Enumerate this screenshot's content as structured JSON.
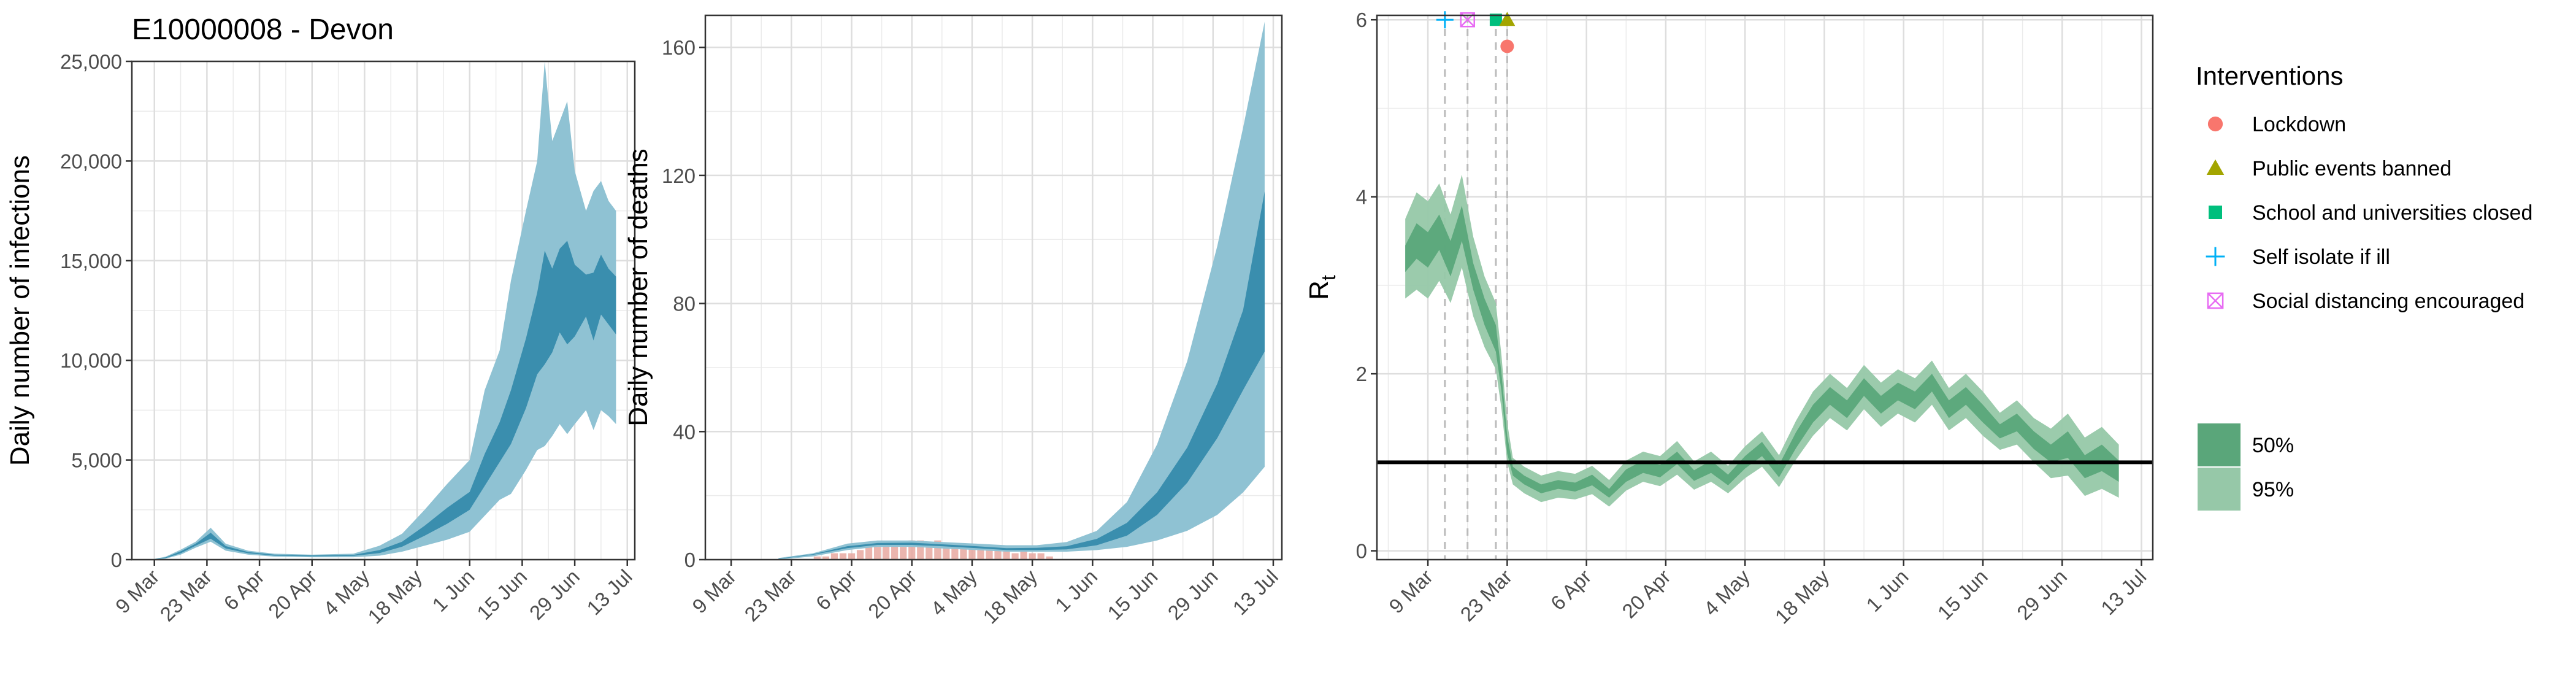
{
  "title": "E10000008 - Devon",
  "colors": {
    "band_light": "#8fc2d3",
    "band_dark": "#3a8eae",
    "rt_light": "#96c8a8",
    "rt_dark": "#5aa67a",
    "bars": "#e8a8a0",
    "threshold": "#000000",
    "vline": "#bbbbbb",
    "panel_border": "#333333",
    "grid": "#ebebeb",
    "lockdown": "#f8766d",
    "events_banned": "#a3a500",
    "schools_closed": "#00bf7d",
    "self_isolate": "#00b0f6",
    "social_distancing": "#e76bf3"
  },
  "interventions_legend": {
    "title": "Interventions",
    "items": [
      {
        "label": "Lockdown",
        "shape": "circle",
        "color_key": "lockdown",
        "date": "2020-03-23"
      },
      {
        "label": "Public events banned",
        "shape": "triangle",
        "color_key": "events_banned",
        "date": "2020-03-23"
      },
      {
        "label": "School and universities closed",
        "shape": "square",
        "color_key": "schools_closed",
        "date": "2020-03-21"
      },
      {
        "label": "Self isolate if ill",
        "shape": "plus",
        "color_key": "self_isolate",
        "date": "2020-03-12"
      },
      {
        "label": "Social distancing encouraged",
        "shape": "boxx",
        "color_key": "social_distancing",
        "date": "2020-03-16"
      }
    ]
  },
  "ci_legend": {
    "items": [
      {
        "label": "50%",
        "color_key": "rt_dark"
      },
      {
        "label": "95%",
        "color_key": "rt_light"
      }
    ]
  },
  "chart_data": [
    {
      "type": "area",
      "title": "E10000008 - Devon",
      "ylabel": "Daily number of infections",
      "ylim": [
        0,
        25000
      ],
      "yticks": [
        0,
        5000,
        10000,
        15000,
        20000,
        25000
      ],
      "ytick_labels": [
        "0",
        "5,000",
        "10,000",
        "15,000",
        "20,000",
        "25,000"
      ],
      "x_range": [
        "2020-03-03",
        "2020-07-15"
      ],
      "xticks": [
        "2020-03-09",
        "2020-03-23",
        "2020-04-06",
        "2020-04-20",
        "2020-05-04",
        "2020-05-18",
        "2020-06-01",
        "2020-06-15",
        "2020-06-29",
        "2020-07-13"
      ],
      "xtick_labels": [
        "9 Mar",
        "23 Mar",
        "6 Apr",
        "20 Apr",
        "4 May",
        "18 May",
        "1 Jun",
        "15 Jun",
        "29 Jun",
        "13 Jul"
      ],
      "grid": true,
      "x": [
        "2020-03-08",
        "2020-03-12",
        "2020-03-16",
        "2020-03-20",
        "2020-03-24",
        "2020-03-28",
        "2020-04-03",
        "2020-04-10",
        "2020-04-20",
        "2020-05-01",
        "2020-05-08",
        "2020-05-14",
        "2020-05-20",
        "2020-05-26",
        "2020-06-01",
        "2020-06-05",
        "2020-06-09",
        "2020-06-12",
        "2020-06-16",
        "2020-06-19",
        "2020-06-21",
        "2020-06-23",
        "2020-06-25",
        "2020-06-27",
        "2020-06-29",
        "2020-07-02",
        "2020-07-04",
        "2020-07-06",
        "2020-07-08",
        "2020-07-10"
      ],
      "series": [
        {
          "name": "95%",
          "lower": [
            0,
            50,
            250,
            600,
            900,
            450,
            250,
            150,
            120,
            120,
            200,
            400,
            700,
            1000,
            1400,
            2200,
            3000,
            3300,
            4500,
            5500,
            5700,
            6200,
            6800,
            6300,
            6800,
            7500,
            6500,
            7500,
            7200,
            6800
          ],
          "upper": [
            0,
            150,
            500,
            900,
            1600,
            800,
            450,
            300,
            250,
            300,
            700,
            1300,
            2500,
            3800,
            5000,
            8500,
            10500,
            14000,
            17500,
            20000,
            25000,
            21000,
            22000,
            23000,
            19500,
            17500,
            18500,
            19000,
            18000,
            17500
          ]
        },
        {
          "name": "50%",
          "lower": [
            0,
            80,
            320,
            700,
            1050,
            560,
            320,
            200,
            170,
            190,
            330,
            650,
            1200,
            1800,
            2500,
            3700,
            4900,
            5800,
            7600,
            9300,
            9800,
            10400,
            11400,
            10800,
            11200,
            12200,
            11000,
            12300,
            11800,
            11300
          ],
          "upper": [
            0,
            110,
            420,
            800,
            1350,
            680,
            380,
            250,
            210,
            240,
            480,
            900,
            1700,
            2600,
            3400,
            5300,
            6900,
            8500,
            11100,
            13400,
            15500,
            14600,
            15600,
            16000,
            14800,
            14300,
            14400,
            15300,
            14600,
            14200
          ]
        }
      ]
    },
    {
      "type": "area",
      "ylabel": "Daily number of deaths",
      "ylim": [
        0,
        170
      ],
      "yticks": [
        0,
        40,
        80,
        120,
        160
      ],
      "ytick_labels": [
        "0",
        "40",
        "80",
        "120",
        "160"
      ],
      "x_range": [
        "2020-03-03",
        "2020-07-15"
      ],
      "xticks": [
        "2020-03-09",
        "2020-03-23",
        "2020-04-06",
        "2020-04-20",
        "2020-05-04",
        "2020-05-18",
        "2020-06-01",
        "2020-06-15",
        "2020-06-29",
        "2020-07-13"
      ],
      "xtick_labels": [
        "9 Mar",
        "23 Mar",
        "6 Apr",
        "20 Apr",
        "4 May",
        "18 May",
        "1 Jun",
        "15 Jun",
        "29 Jun",
        "13 Jul"
      ],
      "grid": true,
      "x": [
        "2020-03-20",
        "2020-03-28",
        "2020-04-05",
        "2020-04-12",
        "2020-04-20",
        "2020-04-27",
        "2020-05-05",
        "2020-05-12",
        "2020-05-19",
        "2020-05-26",
        "2020-06-02",
        "2020-06-09",
        "2020-06-16",
        "2020-06-23",
        "2020-06-30",
        "2020-07-06",
        "2020-07-11"
      ],
      "series": [
        {
          "name": "95%",
          "lower": [
            0,
            1,
            3,
            4,
            4,
            3.5,
            3,
            2.5,
            2.5,
            2.5,
            3,
            4,
            6,
            9,
            14,
            21,
            29
          ],
          "upper": [
            0.5,
            2,
            5,
            6,
            6,
            5.5,
            5,
            4.5,
            4.5,
            5.5,
            9,
            18,
            36,
            62,
            98,
            135,
            168
          ]
        },
        {
          "name": "50%",
          "lower": [
            0.2,
            1.5,
            3.6,
            4.6,
            4.6,
            4.2,
            3.6,
            3,
            3,
            3.2,
            4.5,
            7.5,
            14,
            24,
            38,
            53,
            65
          ],
          "upper": [
            0.3,
            1.7,
            4.2,
            5.2,
            5.3,
            4.8,
            4.2,
            3.6,
            3.7,
            4.2,
            6.5,
            11.5,
            21,
            35,
            55,
            78,
            115
          ]
        }
      ],
      "bars": {
        "x": [
          "2020-03-29",
          "2020-03-31",
          "2020-04-02",
          "2020-04-04",
          "2020-04-06",
          "2020-04-08",
          "2020-04-10",
          "2020-04-12",
          "2020-04-14",
          "2020-04-16",
          "2020-04-18",
          "2020-04-20",
          "2020-04-22",
          "2020-04-24",
          "2020-04-26",
          "2020-04-28",
          "2020-04-30",
          "2020-05-02",
          "2020-05-04",
          "2020-05-06",
          "2020-05-08",
          "2020-05-10",
          "2020-05-12",
          "2020-05-14",
          "2020-05-16",
          "2020-05-18",
          "2020-05-20",
          "2020-05-22"
        ],
        "values": [
          1,
          1,
          2,
          2,
          2,
          3,
          4,
          4,
          5,
          5,
          4,
          6,
          6,
          5,
          6,
          4,
          5,
          5,
          4,
          3,
          4,
          3,
          3,
          2,
          3,
          2,
          2,
          1
        ]
      }
    },
    {
      "type": "line",
      "ylabel": "R",
      "ylabel_sub": "t",
      "ylim": [
        -0.1,
        6.05
      ],
      "yticks": [
        0,
        2,
        4,
        6
      ],
      "ytick_labels": [
        "0",
        "2",
        "4",
        "6"
      ],
      "x_range": [
        "2020-02-29",
        "2020-07-15"
      ],
      "xticks": [
        "2020-03-09",
        "2020-03-23",
        "2020-04-06",
        "2020-04-20",
        "2020-05-04",
        "2020-05-18",
        "2020-06-01",
        "2020-06-15",
        "2020-06-29",
        "2020-07-13"
      ],
      "xtick_labels": [
        "9 Mar",
        "23 Mar",
        "6 Apr",
        "20 Apr",
        "4 May",
        "18 May",
        "1 Jun",
        "15 Jun",
        "29 Jun",
        "13 Jul"
      ],
      "grid": true,
      "threshold": 1,
      "intervention_lines": [
        "2020-03-12",
        "2020-03-16",
        "2020-03-21",
        "2020-03-23"
      ],
      "x": [
        "2020-03-05",
        "2020-03-07",
        "2020-03-09",
        "2020-03-11",
        "2020-03-13",
        "2020-03-15",
        "2020-03-17",
        "2020-03-19",
        "2020-03-21",
        "2020-03-22",
        "2020-03-23",
        "2020-03-24",
        "2020-03-26",
        "2020-03-29",
        "2020-04-01",
        "2020-04-04",
        "2020-04-07",
        "2020-04-10",
        "2020-04-13",
        "2020-04-16",
        "2020-04-19",
        "2020-04-22",
        "2020-04-25",
        "2020-04-28",
        "2020-05-01",
        "2020-05-04",
        "2020-05-07",
        "2020-05-10",
        "2020-05-13",
        "2020-05-16",
        "2020-05-19",
        "2020-05-22",
        "2020-05-25",
        "2020-05-28",
        "2020-05-31",
        "2020-06-03",
        "2020-06-06",
        "2020-06-09",
        "2020-06-12",
        "2020-06-15",
        "2020-06-18",
        "2020-06-21",
        "2020-06-24",
        "2020-06-27",
        "2020-06-30",
        "2020-07-03",
        "2020-07-06",
        "2020-07-09"
      ],
      "series": [
        {
          "name": "median",
          "values": [
            3.3,
            3.5,
            3.4,
            3.6,
            3.3,
            3.7,
            3.1,
            2.7,
            2.4,
            1.9,
            1.2,
            0.9,
            0.8,
            0.7,
            0.75,
            0.72,
            0.8,
            0.65,
            0.85,
            0.95,
            0.9,
            1.05,
            0.85,
            0.95,
            0.8,
            1.0,
            1.15,
            0.9,
            1.25,
            1.55,
            1.75,
            1.6,
            1.85,
            1.65,
            1.8,
            1.7,
            1.9,
            1.6,
            1.75,
            1.55,
            1.35,
            1.45,
            1.25,
            1.1,
            1.2,
            0.95,
            1.05,
            0.9
          ]
        },
        {
          "name": "50%",
          "lower": [
            3.15,
            3.3,
            3.2,
            3.4,
            3.1,
            3.5,
            2.95,
            2.55,
            2.25,
            1.8,
            1.1,
            0.85,
            0.75,
            0.65,
            0.7,
            0.67,
            0.74,
            0.6,
            0.78,
            0.88,
            0.83,
            0.98,
            0.79,
            0.88,
            0.74,
            0.93,
            1.07,
            0.83,
            1.16,
            1.45,
            1.65,
            1.5,
            1.75,
            1.55,
            1.7,
            1.6,
            1.8,
            1.5,
            1.65,
            1.45,
            1.27,
            1.35,
            1.15,
            1.0,
            1.05,
            0.82,
            0.9,
            0.78
          ],
          "upper": [
            3.45,
            3.7,
            3.6,
            3.8,
            3.5,
            3.9,
            3.25,
            2.85,
            2.55,
            2.0,
            1.3,
            0.95,
            0.85,
            0.75,
            0.8,
            0.77,
            0.86,
            0.7,
            0.92,
            1.02,
            0.97,
            1.12,
            0.91,
            1.02,
            0.86,
            1.07,
            1.23,
            0.97,
            1.34,
            1.65,
            1.85,
            1.7,
            1.95,
            1.75,
            1.9,
            1.8,
            2.0,
            1.7,
            1.85,
            1.65,
            1.43,
            1.55,
            1.35,
            1.2,
            1.35,
            1.08,
            1.2,
            1.02
          ]
        },
        {
          "name": "95%",
          "lower": [
            2.85,
            2.95,
            2.85,
            3.05,
            2.8,
            3.2,
            2.65,
            2.3,
            2.05,
            1.6,
            1.0,
            0.75,
            0.65,
            0.55,
            0.6,
            0.58,
            0.64,
            0.5,
            0.68,
            0.78,
            0.73,
            0.86,
            0.69,
            0.78,
            0.65,
            0.82,
            0.95,
            0.72,
            1.03,
            1.3,
            1.5,
            1.36,
            1.6,
            1.4,
            1.55,
            1.45,
            1.65,
            1.36,
            1.5,
            1.3,
            1.14,
            1.2,
            1.0,
            0.82,
            0.85,
            0.62,
            0.7,
            0.6
          ],
          "upper": [
            3.75,
            4.05,
            3.95,
            4.15,
            3.8,
            4.25,
            3.55,
            3.1,
            2.8,
            2.2,
            1.45,
            1.05,
            0.95,
            0.85,
            0.9,
            0.87,
            0.96,
            0.8,
            1.02,
            1.12,
            1.07,
            1.24,
            1.01,
            1.12,
            0.96,
            1.18,
            1.35,
            1.08,
            1.47,
            1.8,
            2.0,
            1.84,
            2.1,
            1.9,
            2.05,
            1.95,
            2.15,
            1.84,
            2.0,
            1.8,
            1.56,
            1.7,
            1.5,
            1.38,
            1.55,
            1.28,
            1.4,
            1.2
          ]
        }
      ],
      "markers": [
        {
          "label": "Self isolate if ill",
          "shape": "plus",
          "color_key": "self_isolate",
          "x": "2020-03-12",
          "y": 6.0
        },
        {
          "label": "Social distancing encouraged",
          "shape": "boxx",
          "color_key": "social_distancing",
          "x": "2020-03-16",
          "y": 6.0
        },
        {
          "label": "School and universities closed",
          "shape": "square",
          "color_key": "schools_closed",
          "x": "2020-03-21",
          "y": 6.0
        },
        {
          "label": "Public events banned",
          "shape": "triangle",
          "color_key": "events_banned",
          "x": "2020-03-23",
          "y": 6.0
        },
        {
          "label": "Lockdown",
          "shape": "circle",
          "color_key": "lockdown",
          "x": "2020-03-23",
          "y": 5.7
        }
      ]
    }
  ]
}
